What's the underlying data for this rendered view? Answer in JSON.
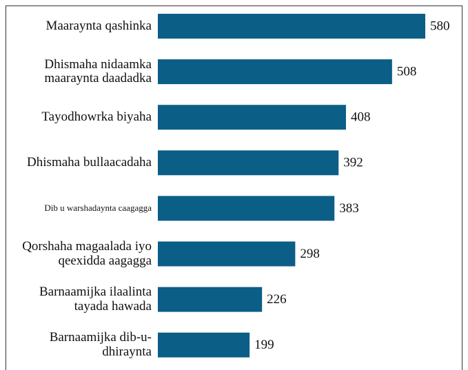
{
  "chart_data": {
    "type": "bar",
    "orientation": "horizontal",
    "categories": [
      "Maaraynta qashinka",
      "Dhismaha nidaamka maaraynta daadadka",
      "Tayodhowrka biyaha",
      "Dhismaha bullaacadaha",
      "Dib u warshadaynta caagagga",
      "Qorshaha magaalada iyo qeexidda aagagga",
      "Barnaamijka ilaalinta tayada hawada",
      "Barnaamijka dib-u-dhiraynta"
    ],
    "values": [
      580,
      508,
      408,
      392,
      383,
      298,
      226,
      199
    ],
    "color": "#0b5e86"
  }
}
